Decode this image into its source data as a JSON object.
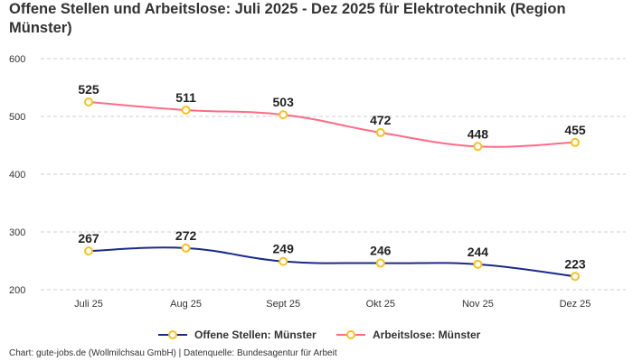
{
  "chart_data": {
    "type": "line",
    "title": "Offene Stellen und Arbeitslose: Juli 2025 - Dez 2025 für Elektrotechnik (Region Münster)",
    "categories": [
      "Juli 25",
      "Aug 25",
      "Sept 25",
      "Okt 25",
      "Nov 25",
      "Dez 25"
    ],
    "yticks": [
      200,
      300,
      400,
      500,
      600
    ],
    "ylim": [
      200,
      600
    ],
    "grid": true,
    "legend_placement": "bottom",
    "series": [
      {
        "name": "Offene Stellen: Münster",
        "values": [
          267,
          272,
          249,
          246,
          244,
          223
        ],
        "color": "#1a2a8a"
      },
      {
        "name": "Arbeitslose: Münster",
        "values": [
          525,
          511,
          503,
          472,
          448,
          455
        ],
        "color": "#ff6b86"
      }
    ],
    "marker_color": "#f7c21c"
  },
  "footer": "Chart: gute-jobs.de (Wollmilchsau GmbH) | Datenquelle: Bundesagentur für Arbeit"
}
